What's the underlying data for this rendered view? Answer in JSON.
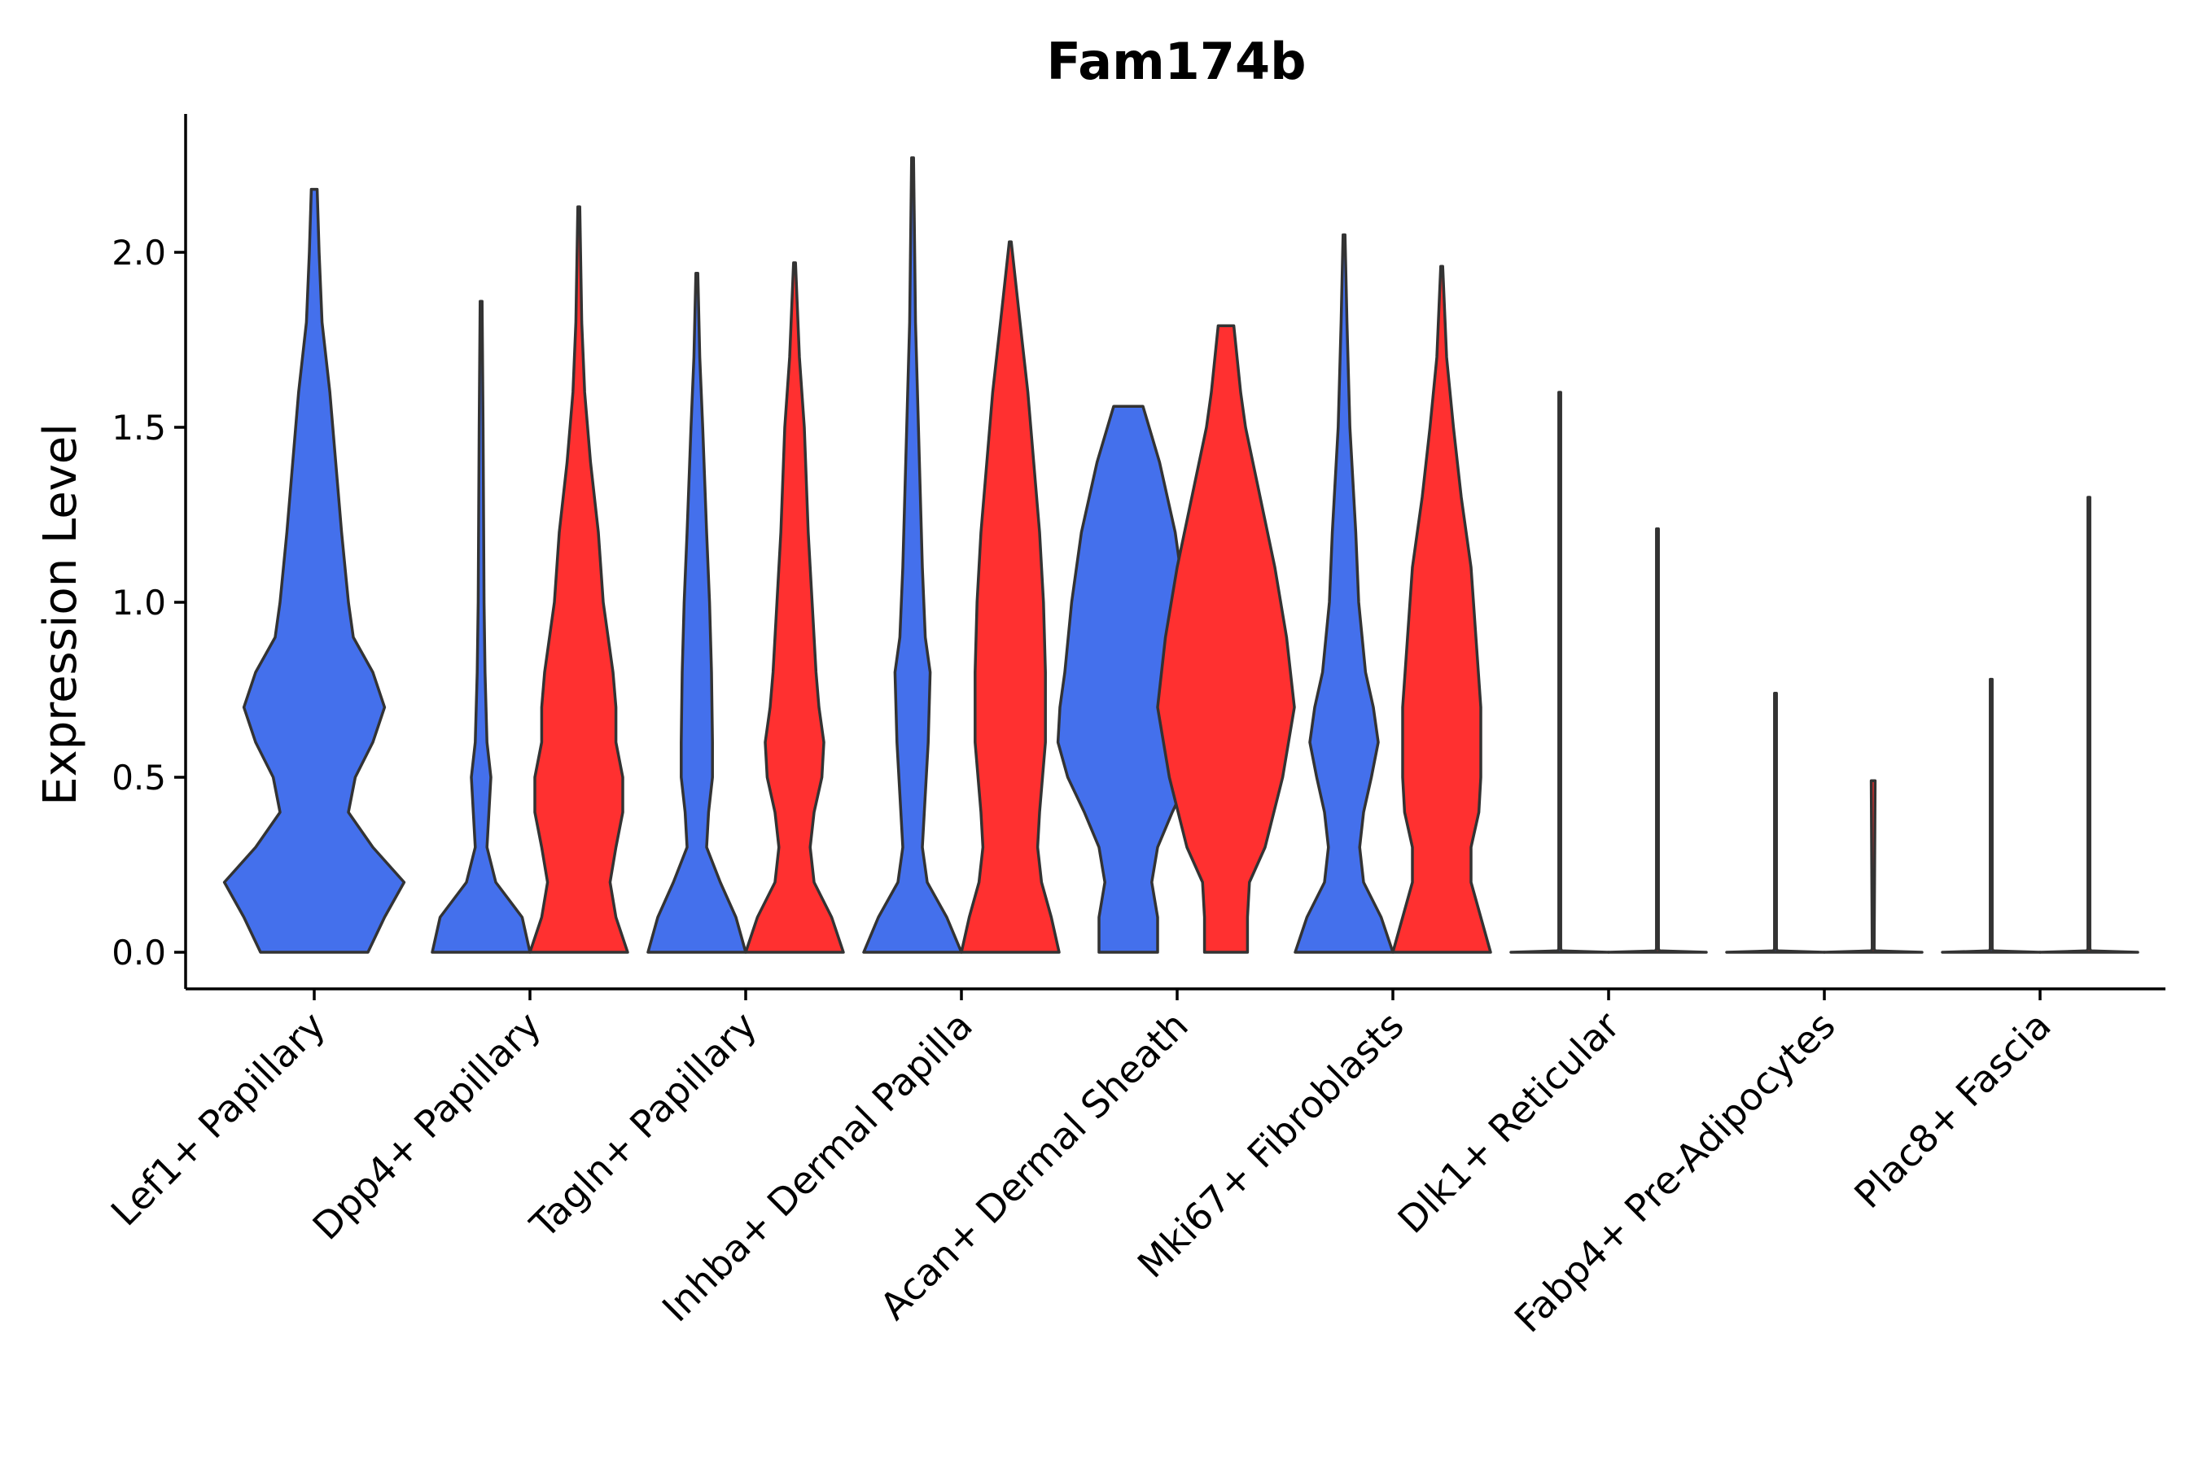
{
  "chart_data": {
    "type": "violin",
    "title": "Fam174b",
    "xlabel": "",
    "ylabel": "Expression Level",
    "ylim": [
      -0.11,
      2.4
    ],
    "yticks": [
      "0.0",
      "0.5",
      "1.0",
      "1.5",
      "2.0"
    ],
    "categories": [
      "Lef1+ Papillary",
      "Dpp4+ Papillary",
      "Tagln+ Papillary",
      "Inhba+ Dermal Papilla",
      "Acan+ Dermal Sheath",
      "Mki67+ Fibroblasts",
      "Dlk1+ Reticular",
      "Fabp4+ Pre-Adipocytes",
      "Plac8+ Fascia"
    ],
    "colors": {
      "blue": "#4470ec",
      "red": "#ff3030",
      "axis": "#000000",
      "outline": "#333333"
    },
    "violins": [
      {
        "category": 0,
        "split": "blue",
        "max": 2.18,
        "profile": [
          [
            0,
            0.55
          ],
          [
            0.1,
            0.72
          ],
          [
            0.2,
            0.92
          ],
          [
            0.3,
            0.6
          ],
          [
            0.4,
            0.35
          ],
          [
            0.5,
            0.42
          ],
          [
            0.6,
            0.6
          ],
          [
            0.7,
            0.72
          ],
          [
            0.8,
            0.6
          ],
          [
            0.9,
            0.4
          ],
          [
            1.0,
            0.35
          ],
          [
            1.2,
            0.28
          ],
          [
            1.4,
            0.22
          ],
          [
            1.6,
            0.16
          ],
          [
            1.8,
            0.08
          ],
          [
            2.0,
            0.05
          ],
          [
            2.18,
            0.03
          ]
        ]
      },
      {
        "category": 1,
        "split": "blue",
        "max": 1.86,
        "profile": [
          [
            0,
            0.5
          ],
          [
            0.1,
            0.42
          ],
          [
            0.2,
            0.15
          ],
          [
            0.3,
            0.06
          ],
          [
            0.4,
            0.08
          ],
          [
            0.5,
            0.1
          ],
          [
            0.6,
            0.06
          ],
          [
            0.8,
            0.04
          ],
          [
            1.0,
            0.03
          ],
          [
            1.5,
            0.02
          ],
          [
            1.86,
            0.01
          ]
        ]
      },
      {
        "category": 1,
        "split": "red",
        "max": 2.13,
        "profile": [
          [
            0,
            0.5
          ],
          [
            0.1,
            0.38
          ],
          [
            0.2,
            0.32
          ],
          [
            0.3,
            0.38
          ],
          [
            0.4,
            0.45
          ],
          [
            0.5,
            0.45
          ],
          [
            0.6,
            0.38
          ],
          [
            0.7,
            0.38
          ],
          [
            0.8,
            0.35
          ],
          [
            1.0,
            0.25
          ],
          [
            1.2,
            0.2
          ],
          [
            1.4,
            0.12
          ],
          [
            1.6,
            0.06
          ],
          [
            1.8,
            0.03
          ],
          [
            2.13,
            0.01
          ]
        ]
      },
      {
        "category": 2,
        "split": "blue",
        "max": 1.94,
        "profile": [
          [
            0,
            0.5
          ],
          [
            0.1,
            0.4
          ],
          [
            0.2,
            0.24
          ],
          [
            0.3,
            0.1
          ],
          [
            0.4,
            0.12
          ],
          [
            0.5,
            0.16
          ],
          [
            0.6,
            0.16
          ],
          [
            0.8,
            0.15
          ],
          [
            1.0,
            0.13
          ],
          [
            1.2,
            0.1
          ],
          [
            1.5,
            0.06
          ],
          [
            1.7,
            0.03
          ],
          [
            1.94,
            0.01
          ]
        ]
      },
      {
        "category": 2,
        "split": "red",
        "max": 1.97,
        "profile": [
          [
            0,
            0.5
          ],
          [
            0.1,
            0.38
          ],
          [
            0.2,
            0.2
          ],
          [
            0.3,
            0.16
          ],
          [
            0.4,
            0.2
          ],
          [
            0.5,
            0.28
          ],
          [
            0.6,
            0.3
          ],
          [
            0.7,
            0.25
          ],
          [
            0.8,
            0.22
          ],
          [
            1.0,
            0.18
          ],
          [
            1.2,
            0.14
          ],
          [
            1.5,
            0.1
          ],
          [
            1.7,
            0.05
          ],
          [
            1.97,
            0.01
          ]
        ]
      },
      {
        "category": 3,
        "split": "blue",
        "max": 2.27,
        "profile": [
          [
            0,
            0.5
          ],
          [
            0.1,
            0.35
          ],
          [
            0.2,
            0.15
          ],
          [
            0.3,
            0.1
          ],
          [
            0.4,
            0.12
          ],
          [
            0.6,
            0.16
          ],
          [
            0.8,
            0.18
          ],
          [
            0.9,
            0.13
          ],
          [
            1.1,
            0.1
          ],
          [
            1.5,
            0.06
          ],
          [
            1.8,
            0.03
          ],
          [
            2.27,
            0.01
          ]
        ]
      },
      {
        "category": 3,
        "split": "red",
        "max": 2.03,
        "profile": [
          [
            0,
            0.5
          ],
          [
            0.1,
            0.42
          ],
          [
            0.2,
            0.32
          ],
          [
            0.3,
            0.28
          ],
          [
            0.4,
            0.3
          ],
          [
            0.6,
            0.36
          ],
          [
            0.8,
            0.36
          ],
          [
            1.0,
            0.34
          ],
          [
            1.2,
            0.3
          ],
          [
            1.4,
            0.24
          ],
          [
            1.6,
            0.18
          ],
          [
            1.8,
            0.1
          ],
          [
            2.03,
            0.01
          ]
        ]
      },
      {
        "category": 4,
        "split": "blue",
        "max": 1.56,
        "profile": [
          [
            0,
            0.3
          ],
          [
            0.1,
            0.3
          ],
          [
            0.2,
            0.24
          ],
          [
            0.3,
            0.3
          ],
          [
            0.4,
            0.45
          ],
          [
            0.5,
            0.62
          ],
          [
            0.6,
            0.72
          ],
          [
            0.7,
            0.7
          ],
          [
            0.8,
            0.65
          ],
          [
            1.0,
            0.58
          ],
          [
            1.2,
            0.48
          ],
          [
            1.4,
            0.32
          ],
          [
            1.56,
            0.15
          ]
        ]
      },
      {
        "category": 4,
        "split": "red",
        "max": 1.79,
        "profile": [
          [
            0,
            0.22
          ],
          [
            0.1,
            0.22
          ],
          [
            0.2,
            0.24
          ],
          [
            0.3,
            0.4
          ],
          [
            0.5,
            0.58
          ],
          [
            0.7,
            0.7
          ],
          [
            0.9,
            0.62
          ],
          [
            1.1,
            0.5
          ],
          [
            1.3,
            0.35
          ],
          [
            1.5,
            0.2
          ],
          [
            1.6,
            0.15
          ],
          [
            1.79,
            0.08
          ]
        ]
      },
      {
        "category": 5,
        "split": "blue",
        "max": 2.05,
        "profile": [
          [
            0,
            0.5
          ],
          [
            0.1,
            0.38
          ],
          [
            0.2,
            0.2
          ],
          [
            0.3,
            0.16
          ],
          [
            0.4,
            0.2
          ],
          [
            0.5,
            0.28
          ],
          [
            0.6,
            0.35
          ],
          [
            0.7,
            0.3
          ],
          [
            0.8,
            0.22
          ],
          [
            1.0,
            0.15
          ],
          [
            1.2,
            0.12
          ],
          [
            1.5,
            0.06
          ],
          [
            1.8,
            0.03
          ],
          [
            2.05,
            0.01
          ]
        ]
      },
      {
        "category": 5,
        "split": "red",
        "max": 1.96,
        "profile": [
          [
            0,
            0.5
          ],
          [
            0.1,
            0.4
          ],
          [
            0.2,
            0.3
          ],
          [
            0.3,
            0.3
          ],
          [
            0.4,
            0.38
          ],
          [
            0.5,
            0.4
          ],
          [
            0.7,
            0.4
          ],
          [
            0.9,
            0.35
          ],
          [
            1.1,
            0.3
          ],
          [
            1.3,
            0.2
          ],
          [
            1.5,
            0.12
          ],
          [
            1.7,
            0.05
          ],
          [
            1.96,
            0.01
          ]
        ]
      },
      {
        "category": 6,
        "split": "blue",
        "max": 1.6,
        "profile": [
          [
            0,
            0.5
          ],
          [
            0.004,
            0.02
          ],
          [
            0.01,
            0.01
          ],
          [
            1.6,
            0.01
          ]
        ]
      },
      {
        "category": 6,
        "split": "red",
        "max": 1.21,
        "profile": [
          [
            0,
            0.5
          ],
          [
            0.004,
            0.02
          ],
          [
            0.01,
            0.01
          ],
          [
            1.21,
            0.01
          ]
        ]
      },
      {
        "category": 7,
        "split": "blue",
        "max": 0.74,
        "profile": [
          [
            0,
            0.5
          ],
          [
            0.004,
            0.02
          ],
          [
            0.01,
            0.01
          ],
          [
            0.74,
            0.01
          ]
        ]
      },
      {
        "category": 7,
        "split": "red",
        "max": 0.49,
        "profile": [
          [
            0,
            0.5
          ],
          [
            0.004,
            0.02
          ],
          [
            0.01,
            0.01
          ],
          [
            0.49,
            0.02
          ]
        ]
      },
      {
        "category": 8,
        "split": "blue",
        "max": 0.78,
        "profile": [
          [
            0,
            0.5
          ],
          [
            0.004,
            0.02
          ],
          [
            0.01,
            0.01
          ],
          [
            0.78,
            0.01
          ]
        ]
      },
      {
        "category": 8,
        "split": "red",
        "max": 1.3,
        "profile": [
          [
            0,
            0.5
          ],
          [
            0.004,
            0.02
          ],
          [
            0.01,
            0.01
          ],
          [
            1.3,
            0.01
          ]
        ]
      }
    ]
  }
}
